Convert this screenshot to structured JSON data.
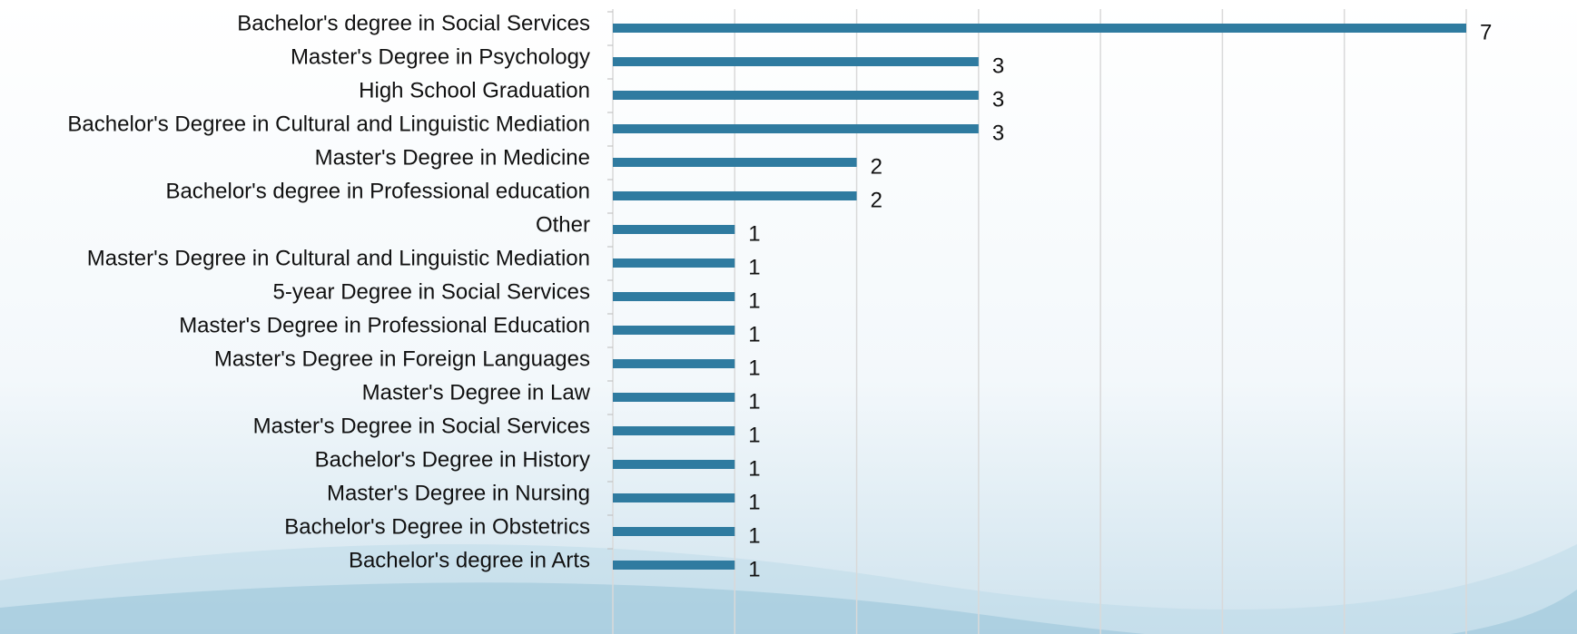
{
  "chart_data": {
    "type": "barh",
    "categories": [
      "Bachelor's degree in Social Services",
      "Master's Degree in Psychology",
      "High School Graduation",
      "Bachelor's Degree in Cultural and Linguistic Mediation",
      "Master's Degree in Medicine",
      "Bachelor's degree in Professional education",
      "Other",
      "Master's Degree in Cultural and Linguistic Mediation",
      "5-year Degree in Social Services",
      "Master's Degree in Professional Education",
      "Master's Degree in Foreign Languages",
      "Master's Degree in Law",
      "Master's Degree in Social Services",
      "Bachelor's Degree in History",
      "Master's Degree in Nursing",
      "Bachelor's Degree in Obstetrics",
      "Bachelor's degree in Arts"
    ],
    "values": [
      7,
      3,
      3,
      3,
      2,
      2,
      1,
      1,
      1,
      1,
      1,
      1,
      1,
      1,
      1,
      1,
      1
    ],
    "color": "#2f7ba0",
    "xlim": [
      0,
      7
    ],
    "xticks": [
      0,
      1,
      2,
      3,
      4,
      5,
      6,
      7
    ],
    "grid": true
  }
}
